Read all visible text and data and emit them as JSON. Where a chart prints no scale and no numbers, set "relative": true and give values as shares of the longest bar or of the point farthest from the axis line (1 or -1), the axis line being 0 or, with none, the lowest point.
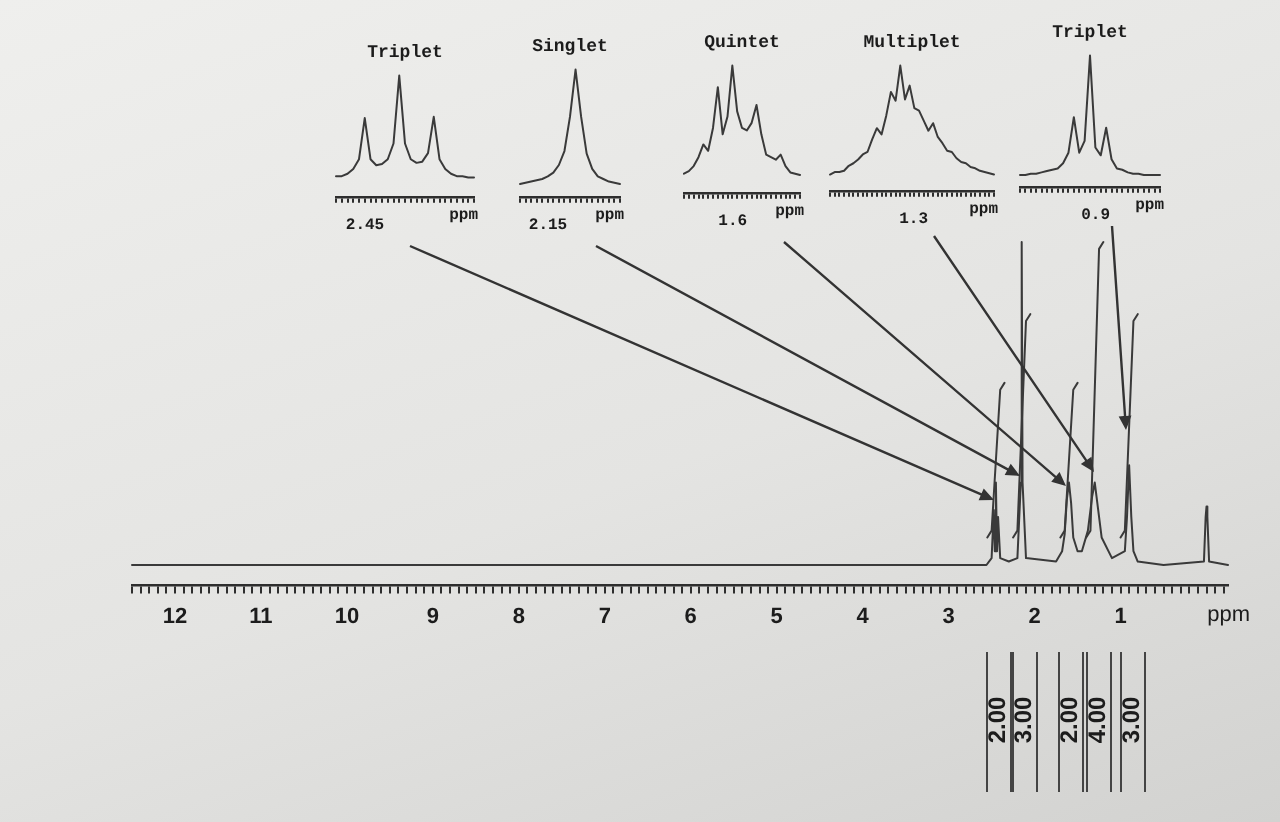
{
  "chart_data": [
    {
      "type": "line",
      "xlabel": "ppm",
      "relative": true,
      "xlim": [
        12.5,
        -0.25
      ],
      "xticks": [
        {
          "value": 12.5,
          "label": null
        },
        {
          "value": 12.4,
          "label": null
        },
        {
          "value": 12.3,
          "label": null
        },
        {
          "value": 12.2,
          "label": null
        },
        {
          "value": 12.1,
          "label": null
        },
        12,
        {
          "value": 11.9,
          "label": null
        },
        {
          "value": 11.8,
          "label": null
        },
        {
          "value": 11.7,
          "label": null
        },
        {
          "value": 11.6,
          "label": null
        },
        {
          "value": 11.5,
          "label": null
        },
        {
          "value": 11.4,
          "label": null
        },
        {
          "value": 11.3,
          "label": null
        },
        {
          "value": 11.2,
          "label": null
        },
        {
          "value": 11.1,
          "label": null
        },
        11,
        {
          "value": 10.9,
          "label": null
        },
        {
          "value": 10.8,
          "label": null
        },
        {
          "value": 10.7,
          "label": null
        },
        {
          "value": 10.6,
          "label": null
        },
        {
          "value": 10.5,
          "label": null
        },
        {
          "value": 10.4,
          "label": null
        },
        {
          "value": 10.3,
          "label": null
        },
        {
          "value": 10.2,
          "label": null
        },
        {
          "value": 10.1,
          "label": null
        },
        10,
        {
          "value": 9.9,
          "label": null
        },
        {
          "value": 9.8,
          "label": null
        },
        {
          "value": 9.7,
          "label": null
        },
        {
          "value": 9.6,
          "label": null
        },
        {
          "value": 9.5,
          "label": null
        },
        {
          "value": 9.4,
          "label": null
        },
        {
          "value": 9.3,
          "label": null
        },
        {
          "value": 9.2,
          "label": null
        },
        {
          "value": 9.1,
          "label": null
        },
        9,
        {
          "value": 8.9,
          "label": null
        },
        {
          "value": 8.8,
          "label": null
        },
        {
          "value": 8.7,
          "label": null
        },
        {
          "value": 8.6,
          "label": null
        },
        {
          "value": 8.5,
          "label": null
        },
        {
          "value": 8.4,
          "label": null
        },
        {
          "value": 8.3,
          "label": null
        },
        {
          "value": 8.2,
          "label": null
        },
        {
          "value": 8.1,
          "label": null
        },
        8,
        {
          "value": 7.9,
          "label": null
        },
        {
          "value": 7.8,
          "label": null
        },
        {
          "value": 7.7,
          "label": null
        },
        {
          "value": 7.6,
          "label": null
        },
        {
          "value": 7.5,
          "label": null
        },
        {
          "value": 7.4,
          "label": null
        },
        {
          "value": 7.3,
          "label": null
        },
        {
          "value": 7.2,
          "label": null
        },
        {
          "value": 7.1,
          "label": null
        },
        7,
        {
          "value": 6.9,
          "label": null
        },
        {
          "value": 6.8,
          "label": null
        },
        {
          "value": 6.7,
          "label": null
        },
        {
          "value": 6.6,
          "label": null
        },
        {
          "value": 6.5,
          "label": null
        },
        {
          "value": 6.4,
          "label": null
        },
        {
          "value": 6.3,
          "label": null
        },
        {
          "value": 6.2,
          "label": null
        },
        {
          "value": 6.1,
          "label": null
        },
        6,
        {
          "value": 5.9,
          "label": null
        },
        {
          "value": 5.8,
          "label": null
        },
        {
          "value": 5.7,
          "label": null
        },
        {
          "value": 5.6,
          "label": null
        },
        {
          "value": 5.5,
          "label": null
        },
        {
          "value": 5.4,
          "label": null
        },
        {
          "value": 5.3,
          "label": null
        },
        {
          "value": 5.2,
          "label": null
        },
        {
          "value": 5.1,
          "label": null
        },
        5,
        {
          "value": 4.9,
          "label": null
        },
        {
          "value": 4.8,
          "label": null
        },
        {
          "value": 4.7,
          "label": null
        },
        {
          "value": 4.6,
          "label": null
        },
        {
          "value": 4.5,
          "label": null
        },
        {
          "value": 4.4,
          "label": null
        },
        {
          "value": 4.3,
          "label": null
        },
        {
          "value": 4.2,
          "label": null
        },
        {
          "value": 4.1,
          "label": null
        },
        4,
        {
          "value": 3.9,
          "label": null
        },
        {
          "value": 3.8,
          "label": null
        },
        {
          "value": 3.7,
          "label": null
        },
        {
          "value": 3.6,
          "label": null
        },
        {
          "value": 3.5,
          "label": null
        },
        {
          "value": 3.4,
          "label": null
        },
        {
          "value": 3.3,
          "label": null
        },
        {
          "value": 3.2,
          "label": null
        },
        {
          "value": 3.1,
          "label": null
        },
        3,
        {
          "value": 2.9,
          "label": null
        },
        {
          "value": 2.8,
          "label": null
        },
        {
          "value": 2.7,
          "label": null
        },
        {
          "value": 2.6,
          "label": null
        },
        {
          "value": 2.5,
          "label": null
        },
        {
          "value": 2.4,
          "label": null
        },
        {
          "value": 2.3,
          "label": null
        },
        {
          "value": 2.2,
          "label": null
        },
        {
          "value": 2.1,
          "label": null
        },
        2,
        {
          "value": 1.9,
          "label": null
        },
        {
          "value": 1.8,
          "label": null
        },
        {
          "value": 1.7,
          "label": null
        },
        {
          "value": 1.6,
          "label": null
        },
        {
          "value": 1.5,
          "label": null
        },
        {
          "value": 1.4,
          "label": null
        },
        {
          "value": 1.3,
          "label": null
        },
        {
          "value": 1.2,
          "label": null
        },
        {
          "value": 1.1,
          "label": null
        },
        1,
        {
          "value": 0.9,
          "label": null
        },
        {
          "value": 0.8,
          "label": null
        },
        {
          "value": 0.7,
          "label": null
        },
        {
          "value": 0.6,
          "label": null
        },
        {
          "value": 0.5,
          "label": null
        },
        {
          "value": 0.4,
          "label": null
        },
        {
          "value": 0.3,
          "label": null
        },
        {
          "value": 0.2,
          "label": null
        },
        {
          "value": 0.1,
          "label": null
        },
        {
          "value": 0,
          "label": null
        },
        {
          "value": -0.1,
          "label": null
        },
        {
          "value": -0.2,
          "label": null
        }
      ],
      "series": [
        {
          "color": "#3a3a3a",
          "x": [
            12.5,
            2.56,
            2.5,
            2.475,
            2.463,
            2.45,
            2.437,
            2.425,
            2.4,
            2.3,
            2.2,
            2.16,
            2.15,
            2.14,
            2.1,
            1.75,
            1.68,
            1.65,
            1.625,
            1.6,
            1.575,
            1.55,
            1.5,
            1.45,
            1.38,
            1.33,
            1.3,
            1.27,
            1.22,
            1.1,
            0.95,
            0.925,
            0.9,
            0.875,
            0.85,
            0.8,
            0.5,
            0.03,
            0.01,
            0,
            -0.01,
            -0.03,
            -0.25
          ],
          "values": [
            0.06,
            0.06,
            0.08,
            0.22,
            0.1,
            0.3,
            0.1,
            0.2,
            0.08,
            0.07,
            0.08,
            0.3,
            1,
            0.3,
            0.08,
            0.07,
            0.1,
            0.15,
            0.25,
            0.3,
            0.24,
            0.14,
            0.1,
            0.1,
            0.16,
            0.26,
            0.3,
            0.24,
            0.14,
            0.08,
            0.1,
            0.2,
            0.35,
            0.2,
            0.1,
            0.07,
            0.06,
            0.07,
            0.2,
            0.23,
            0.2,
            0.07,
            0.06
          ]
        },
        {
          "color": "#3a3a3a",
          "x": [
            2.55,
            2.5,
            2.4,
            2.35,
            2.3,
            2.25,
            2.2,
            2.1,
            2.05,
            1.9,
            1.7,
            1.65,
            1.55,
            1.5,
            1.45,
            1.4,
            1.35,
            1.25,
            1.2,
            1.1,
            1,
            0.95,
            0.85,
            0.8
          ],
          "values": [
            0.14,
            0.16,
            0.57,
            0.59,
            null,
            0.14,
            0.16,
            0.77,
            0.79,
            null,
            0.14,
            0.16,
            0.57,
            0.59,
            null,
            0.14,
            0.16,
            0.98,
            1,
            null,
            0.14,
            0.16,
            0.77,
            0.79
          ]
        }
      ],
      "annotations": [
        "2.00",
        "3.00",
        "2.00",
        "4.00",
        "3.00"
      ]
    },
    {
      "type": "line",
      "title": "Triplet",
      "xlabel": "ppm",
      "relative": true,
      "color": "#3a3a3a",
      "categories": [
        null,
        null,
        null,
        null,
        null,
        null,
        null,
        null,
        null,
        null,
        null,
        null,
        null,
        null,
        null,
        null,
        null,
        null,
        null,
        null,
        null,
        null,
        null,
        null,
        null
      ],
      "values": [
        0.17,
        0.17,
        0.19,
        0.23,
        0.31,
        0.65,
        0.31,
        0.26,
        0.27,
        0.31,
        0.44,
        1,
        0.44,
        0.31,
        0.28,
        0.29,
        0.36,
        0.66,
        0.31,
        0.23,
        0.19,
        0.17,
        0.17,
        0.16,
        0.16
      ],
      "annotations": [
        "2.45"
      ]
    },
    {
      "type": "line",
      "title": "Singlet",
      "xlabel": "ppm",
      "relative": true,
      "color": "#3a3a3a",
      "categories": [
        null,
        null,
        null,
        null,
        null,
        null,
        null,
        null,
        null,
        null,
        null,
        null,
        null,
        null,
        null,
        null,
        null,
        null,
        null
      ],
      "values": [
        0.1,
        0.11,
        0.12,
        0.13,
        0.14,
        0.16,
        0.19,
        0.25,
        0.36,
        0.63,
        1,
        0.63,
        0.34,
        0.22,
        0.16,
        0.14,
        0.12,
        0.11,
        0.1
      ],
      "annotations": [
        "2.15"
      ]
    },
    {
      "type": "line",
      "title": "Quintet",
      "xlabel": "ppm",
      "relative": true,
      "color": "#3a3a3a",
      "categories": [
        null,
        null,
        null,
        null,
        null,
        null,
        null,
        null,
        null,
        null,
        null,
        null,
        null,
        null,
        null,
        null,
        null,
        null,
        null,
        null,
        null,
        null,
        null,
        null,
        null
      ],
      "values": [
        0.15,
        0.17,
        0.21,
        0.28,
        0.38,
        0.33,
        0.51,
        0.83,
        0.46,
        0.6,
        1,
        0.64,
        0.51,
        0.49,
        0.55,
        0.69,
        0.46,
        0.3,
        0.28,
        0.26,
        0.3,
        0.21,
        0.16,
        0.15,
        0.14
      ],
      "annotations": [
        "1.6"
      ]
    },
    {
      "type": "line",
      "title": "Multiplet",
      "xlabel": "ppm",
      "relative": true,
      "color": "#3a3a3a",
      "categories": [
        null,
        null,
        null,
        null,
        null,
        null,
        null,
        null,
        null,
        null,
        null,
        null,
        null,
        null,
        null,
        null,
        null,
        null,
        null,
        null,
        null,
        null,
        null,
        null,
        null,
        null,
        null,
        null,
        null,
        null,
        null,
        null,
        null,
        null,
        null,
        null
      ],
      "values": [
        0.13,
        0.15,
        0.15,
        0.16,
        0.2,
        0.22,
        0.25,
        0.29,
        0.31,
        0.41,
        0.5,
        0.45,
        0.6,
        0.79,
        0.72,
        1,
        0.73,
        0.84,
        0.66,
        0.64,
        0.56,
        0.48,
        0.54,
        0.43,
        0.38,
        0.32,
        0.31,
        0.26,
        0.23,
        0.22,
        0.19,
        0.18,
        0.16,
        0.15,
        0.14,
        0.13
      ],
      "annotations": [
        "1.3"
      ]
    },
    {
      "type": "line",
      "title": "Triplet",
      "xlabel": "ppm",
      "relative": true,
      "color": "#3a3a3a",
      "categories": [
        null,
        null,
        null,
        null,
        null,
        null,
        null,
        null,
        null,
        null,
        null,
        null,
        null,
        null,
        null,
        null,
        null,
        null,
        null,
        null,
        null,
        null,
        null,
        null,
        null,
        null,
        null
      ],
      "values": [
        0.09,
        0.09,
        0.1,
        0.1,
        0.11,
        0.12,
        0.13,
        0.14,
        0.18,
        0.26,
        0.53,
        0.26,
        0.35,
        1,
        0.3,
        0.24,
        0.45,
        0.21,
        0.14,
        0.13,
        0.11,
        0.1,
        0.1,
        0.09,
        0.09,
        0.09,
        0.09
      ],
      "annotations": [
        "0.9"
      ]
    }
  ]
}
